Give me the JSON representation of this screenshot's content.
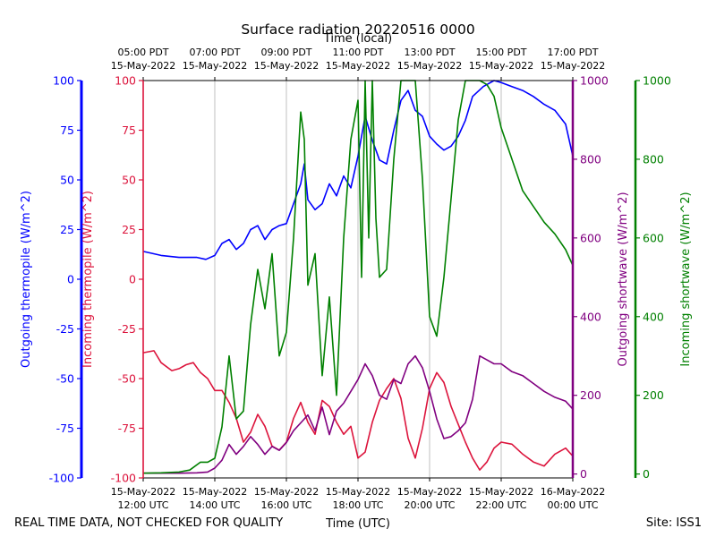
{
  "chart_data": {
    "type": "line",
    "title": "Surface radiation 20220516 0000",
    "top_axis_label": "Time (local)",
    "xlabel": "Time (UTC)",
    "x_unit": "hours UTC since 15-May-2022 12:00",
    "xlim": [
      12,
      24
    ],
    "x_ticks": [
      12,
      14,
      16,
      18,
      20,
      22,
      24
    ],
    "bottom_tick_labels": [
      {
        "date": "15-May-2022",
        "time": "12:00 UTC"
      },
      {
        "date": "15-May-2022",
        "time": "14:00 UTC"
      },
      {
        "date": "15-May-2022",
        "time": "16:00 UTC"
      },
      {
        "date": "15-May-2022",
        "time": "18:00 UTC"
      },
      {
        "date": "15-May-2022",
        "time": "20:00 UTC"
      },
      {
        "date": "15-May-2022",
        "time": "22:00 UTC"
      },
      {
        "date": "16-May-2022",
        "time": "00:00 UTC"
      }
    ],
    "top_tick_labels": [
      {
        "time": "05:00 PDT",
        "date": "15-May-2022"
      },
      {
        "time": "07:00 PDT",
        "date": "15-May-2022"
      },
      {
        "time": "09:00 PDT",
        "date": "15-May-2022"
      },
      {
        "time": "11:00 PDT",
        "date": "15-May-2022"
      },
      {
        "time": "13:00 PDT",
        "date": "15-May-2022"
      },
      {
        "time": "15:00 PDT",
        "date": "15-May-2022"
      },
      {
        "time": "17:00 PDT",
        "date": "15-May-2022"
      }
    ],
    "axes": [
      {
        "key": "out_thermo",
        "label": "Outgoing thermopile (W/m^2)",
        "color": "#0000ff",
        "range": [
          -100,
          100
        ],
        "ticks": [
          -100,
          -75,
          -50,
          -25,
          0,
          25,
          50,
          75,
          100
        ]
      },
      {
        "key": "in_thermo",
        "label": "Incoming thermopile (W/m^2)",
        "color": "#dc143c",
        "range": [
          -100,
          100
        ],
        "ticks": [
          -100,
          -75,
          -50,
          -25,
          0,
          25,
          50,
          75,
          100
        ]
      },
      {
        "key": "out_sw",
        "label": "Outgoing shortwave (W/m^2)",
        "color": "#800080",
        "range": [
          -10,
          1000
        ],
        "ticks": [
          0,
          200,
          400,
          600,
          800,
          1000
        ]
      },
      {
        "key": "in_sw",
        "label": "Incoming shortwave (W/m^2)",
        "color": "#008000",
        "range": [
          -10,
          1000
        ],
        "ticks": [
          0,
          200,
          400,
          600,
          800,
          1000
        ]
      }
    ],
    "series": [
      {
        "name": "Outgoing thermopile",
        "axis": "out_thermo",
        "color": "#0000ff",
        "x": [
          12.0,
          12.5,
          13.0,
          13.5,
          13.75,
          14.0,
          14.2,
          14.4,
          14.6,
          14.8,
          15.0,
          15.2,
          15.4,
          15.6,
          15.8,
          16.0,
          16.2,
          16.4,
          16.5,
          16.6,
          16.8,
          17.0,
          17.2,
          17.4,
          17.6,
          17.8,
          18.0,
          18.2,
          18.4,
          18.6,
          18.8,
          19.0,
          19.2,
          19.4,
          19.6,
          19.8,
          20.0,
          20.2,
          20.4,
          20.6,
          20.8,
          21.0,
          21.2,
          21.5,
          21.8,
          22.0,
          22.3,
          22.6,
          22.9,
          23.2,
          23.5,
          23.8,
          24.0
        ],
        "y": [
          14,
          12,
          11,
          11,
          10,
          12,
          18,
          20,
          15,
          18,
          25,
          27,
          20,
          25,
          27,
          28,
          38,
          48,
          58,
          40,
          35,
          38,
          48,
          42,
          52,
          46,
          62,
          82,
          70,
          60,
          58,
          75,
          90,
          95,
          85,
          82,
          72,
          68,
          65,
          67,
          72,
          80,
          92,
          97,
          100,
          99,
          97,
          95,
          92,
          88,
          85,
          78,
          62
        ]
      },
      {
        "name": "Incoming thermopile",
        "axis": "in_thermo",
        "color": "#dc143c",
        "x": [
          12.0,
          12.3,
          12.5,
          12.8,
          13.0,
          13.2,
          13.4,
          13.6,
          13.8,
          14.0,
          14.2,
          14.4,
          14.6,
          14.8,
          15.0,
          15.2,
          15.4,
          15.6,
          15.8,
          16.0,
          16.2,
          16.4,
          16.6,
          16.8,
          17.0,
          17.2,
          17.4,
          17.6,
          17.8,
          18.0,
          18.2,
          18.4,
          18.6,
          18.8,
          19.0,
          19.2,
          19.4,
          19.6,
          19.8,
          20.0,
          20.2,
          20.4,
          20.6,
          20.8,
          21.0,
          21.2,
          21.4,
          21.6,
          21.8,
          22.0,
          22.3,
          22.6,
          22.9,
          23.2,
          23.5,
          23.8,
          24.0
        ],
        "y": [
          -37,
          -36,
          -42,
          -46,
          -45,
          -43,
          -42,
          -47,
          -50,
          -56,
          -56,
          -62,
          -70,
          -82,
          -77,
          -68,
          -74,
          -84,
          -86,
          -82,
          -70,
          -62,
          -72,
          -78,
          -61,
          -64,
          -72,
          -78,
          -74,
          -90,
          -87,
          -72,
          -61,
          -55,
          -50,
          -60,
          -80,
          -90,
          -75,
          -55,
          -47,
          -52,
          -64,
          -73,
          -82,
          -90,
          -96,
          -92,
          -85,
          -82,
          -83,
          -88,
          -92,
          -94,
          -88,
          -85,
          -89
        ]
      },
      {
        "name": "Outgoing shortwave",
        "axis": "out_sw",
        "color": "#800080",
        "x": [
          12.0,
          12.5,
          13.0,
          13.5,
          13.8,
          14.0,
          14.2,
          14.4,
          14.6,
          14.8,
          15.0,
          15.2,
          15.4,
          15.6,
          15.8,
          16.0,
          16.2,
          16.4,
          16.6,
          16.8,
          17.0,
          17.2,
          17.4,
          17.6,
          17.8,
          18.0,
          18.2,
          18.4,
          18.6,
          18.8,
          19.0,
          19.2,
          19.4,
          19.6,
          19.8,
          20.0,
          20.2,
          20.4,
          20.6,
          20.8,
          21.0,
          21.2,
          21.4,
          21.6,
          21.8,
          22.0,
          22.3,
          22.6,
          22.9,
          23.2,
          23.5,
          23.8,
          24.0
        ],
        "y": [
          2,
          2,
          2,
          3,
          5,
          15,
          35,
          75,
          50,
          70,
          95,
          75,
          50,
          70,
          60,
          80,
          110,
          130,
          150,
          110,
          170,
          100,
          160,
          180,
          210,
          240,
          280,
          250,
          200,
          190,
          240,
          230,
          280,
          300,
          270,
          210,
          140,
          90,
          95,
          110,
          130,
          190,
          300,
          290,
          280,
          280,
          260,
          250,
          230,
          210,
          195,
          185,
          165
        ]
      },
      {
        "name": "Incoming shortwave",
        "axis": "in_sw",
        "color": "#008000",
        "x": [
          12.0,
          12.5,
          13.0,
          13.3,
          13.6,
          13.8,
          14.0,
          14.2,
          14.4,
          14.6,
          14.8,
          15.0,
          15.2,
          15.4,
          15.6,
          15.8,
          16.0,
          16.2,
          16.4,
          16.5,
          16.6,
          16.8,
          17.0,
          17.2,
          17.4,
          17.6,
          17.8,
          18.0,
          18.1,
          18.2,
          18.3,
          18.4,
          18.5,
          18.6,
          18.8,
          19.0,
          19.2,
          19.4,
          19.6,
          19.8,
          20.0,
          20.2,
          20.4,
          20.6,
          20.8,
          21.0,
          21.2,
          21.4,
          21.6,
          21.8,
          22.0,
          22.3,
          22.6,
          22.9,
          23.2,
          23.5,
          23.8,
          24.0
        ],
        "y": [
          2,
          3,
          5,
          10,
          30,
          30,
          40,
          120,
          300,
          140,
          160,
          380,
          520,
          420,
          560,
          300,
          360,
          600,
          920,
          850,
          480,
          560,
          250,
          450,
          200,
          600,
          850,
          950,
          500,
          1000,
          600,
          1000,
          650,
          500,
          520,
          800,
          1000,
          1000,
          1000,
          750,
          400,
          350,
          500,
          700,
          900,
          1000,
          1000,
          1000,
          990,
          960,
          880,
          800,
          720,
          680,
          640,
          610,
          570,
          530
        ]
      }
    ]
  },
  "footer": {
    "left": "REAL TIME DATA, NOT CHECKED FOR QUALITY",
    "right": "Site: ISS1"
  }
}
